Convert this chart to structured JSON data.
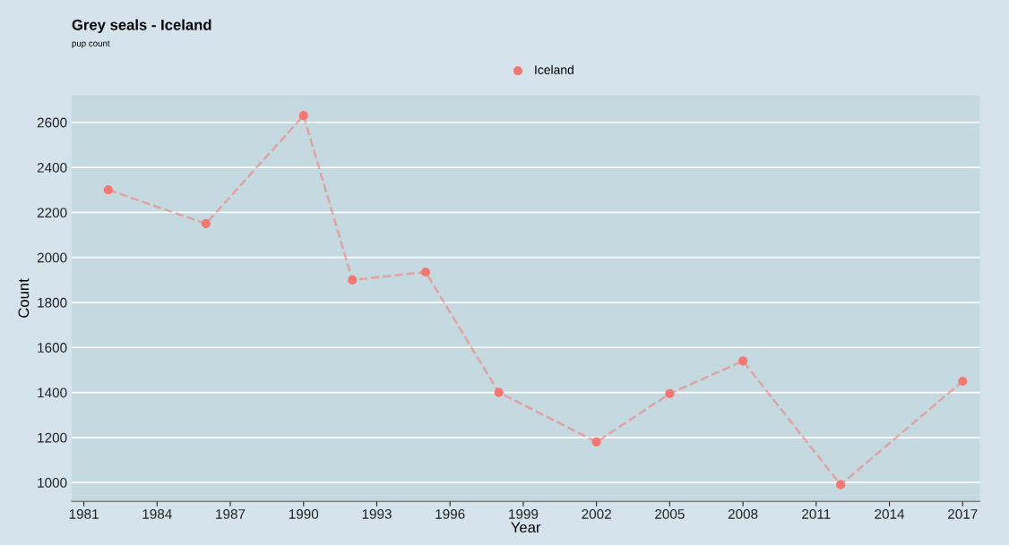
{
  "chart_data": {
    "type": "line",
    "title": "Grey seals - Iceland",
    "subtitle": "pup count",
    "xlabel": "Year",
    "ylabel": "Count",
    "x": [
      1982,
      1986,
      1990,
      1992,
      1995,
      1998,
      2002,
      2005,
      2008,
      2012,
      2017
    ],
    "series": [
      {
        "name": "Iceland",
        "color": "#f8766d",
        "values": [
          2300,
          2150,
          2630,
          1900,
          1935,
          1400,
          1180,
          1395,
          1540,
          990,
          1450
        ]
      }
    ],
    "xlim": [
      1980.5,
      2017.7
    ],
    "xticks": [
      1981,
      1984,
      1987,
      1990,
      1993,
      1996,
      1999,
      2002,
      2005,
      2008,
      2011,
      2014,
      2017
    ],
    "ylim": [
      916,
      2720
    ],
    "yticks": [
      1000,
      1200,
      1400,
      1600,
      1800,
      2000,
      2200,
      2400,
      2600
    ],
    "grid": "y",
    "legend": "top",
    "marker": "circle",
    "line_style": "dashed"
  }
}
